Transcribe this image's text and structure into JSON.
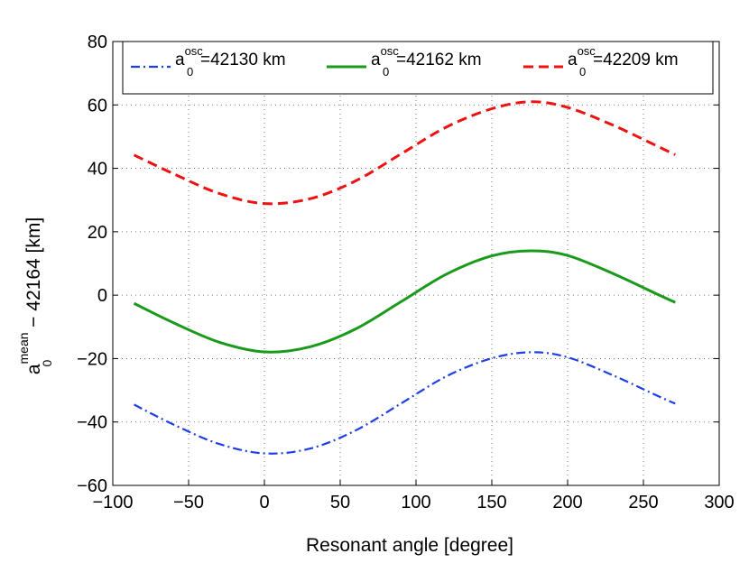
{
  "chart_data": {
    "type": "line",
    "title": "",
    "xlabel": "Resonant angle [degree]",
    "ylabel": {
      "base": "a",
      "sup": "mean",
      "sub": "0",
      "rest": " − 42164 [km]"
    },
    "xlim": [
      -100,
      300
    ],
    "ylim": [
      -60,
      80
    ],
    "xticks": [
      -100,
      -50,
      0,
      50,
      100,
      150,
      200,
      250,
      300
    ],
    "yticks": [
      -60,
      -40,
      -20,
      0,
      20,
      40,
      60,
      80
    ],
    "xtick_labels": [
      "−100",
      "−50",
      "0",
      "50",
      "100",
      "150",
      "200",
      "250",
      "300"
    ],
    "ytick_labels": [
      "−60",
      "−40",
      "−20",
      "0",
      "20",
      "40",
      "60",
      "80"
    ],
    "grid": true,
    "legend_position": "top",
    "series": [
      {
        "name": "a0osc=42130 km",
        "legend": {
          "base": "a",
          "sup": "osc",
          "sub": "0",
          "rest": "=42130 km"
        },
        "color": "#1f3fe6",
        "style": "dash-dot",
        "x": [
          -86,
          -60,
          -30,
          0,
          30,
          60,
          90,
          120,
          150,
          176,
          200,
          230,
          260,
          271
        ],
        "y": [
          -34.5,
          -40.8,
          -46.9,
          -49.9,
          -48.4,
          -42.7,
          -34.2,
          -25.6,
          -19.9,
          -18.0,
          -19.6,
          -25.3,
          -31.9,
          -34.2
        ]
      },
      {
        "name": "a0osc=42162 km",
        "legend": {
          "base": "a",
          "sup": "osc",
          "sub": "0",
          "rest": "=42162 km"
        },
        "color": "#1a9a1a",
        "style": "solid",
        "x": [
          -86,
          -60,
          -30,
          0,
          30,
          60,
          90,
          120,
          150,
          176,
          200,
          230,
          260,
          271
        ],
        "y": [
          -2.6,
          -8.7,
          -14.8,
          -17.9,
          -16.3,
          -10.7,
          -2.1,
          6.6,
          12.4,
          14.0,
          12.5,
          6.8,
          0.1,
          -2.3
        ]
      },
      {
        "name": "a0osc=42209 km",
        "legend": {
          "base": "a",
          "sup": "osc",
          "sub": "0",
          "rest": "=42209 km"
        },
        "color": "#ee1111",
        "style": "dashed",
        "x": [
          -86,
          -60,
          -30,
          0,
          30,
          60,
          90,
          120,
          150,
          176,
          200,
          230,
          260,
          271
        ],
        "y": [
          44.2,
          38.3,
          32.1,
          28.9,
          30.4,
          36.0,
          44.5,
          53.0,
          58.8,
          61.0,
          59.2,
          53.6,
          46.8,
          44.3
        ]
      }
    ]
  }
}
